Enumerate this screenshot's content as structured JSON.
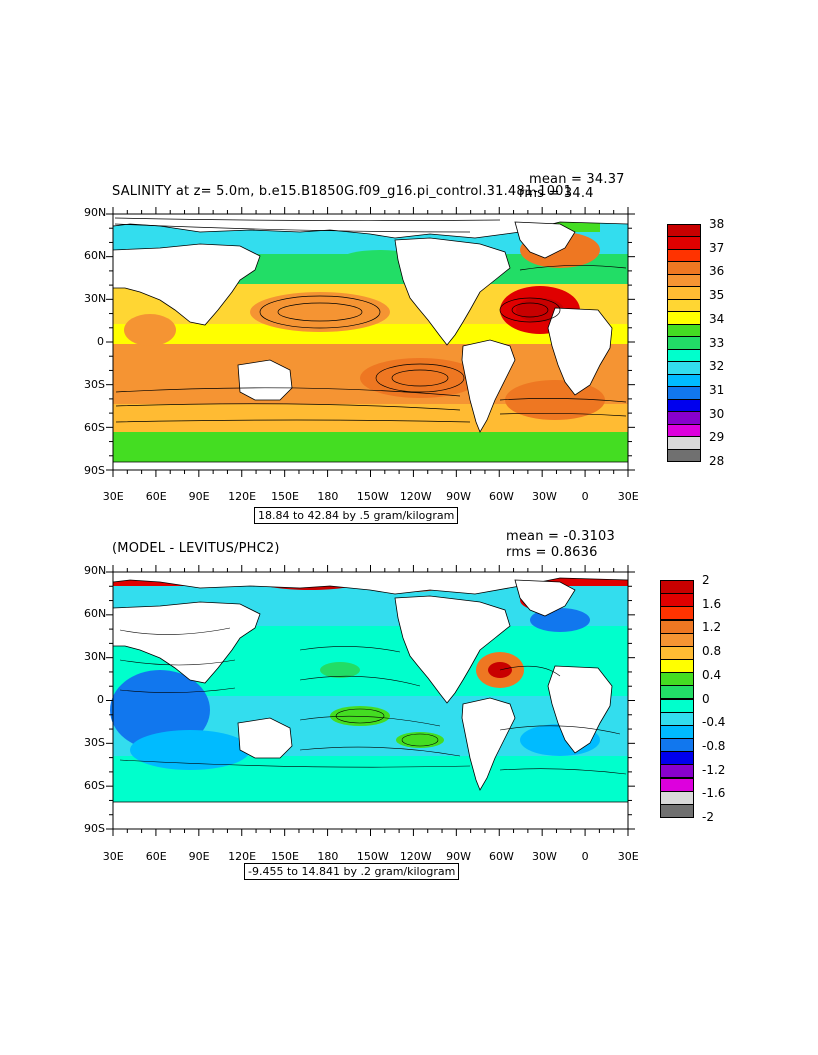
{
  "top": {
    "title": "SALINITY at z=    5.0m, b.e15.B1850G.f09_g16.pi_control.31.481-1001",
    "mean": "mean = 34.37",
    "rms": "rms = 34.4",
    "caption": "18.84 to 42.84 by .5 gram/kilogram",
    "colorbar": {
      "labels": [
        "38",
        "37",
        "36",
        "35",
        "34",
        "33",
        "32",
        "31",
        "30",
        "29",
        "28"
      ],
      "colors": [
        "#c80000",
        "#e00000",
        "#ff3300",
        "#ee7722",
        "#f59433",
        "#ffbb33",
        "#ffd633",
        "#ffff00",
        "#44dd22",
        "#22dd66",
        "#00ffcc",
        "#33ddee",
        "#00bbff",
        "#1177ee",
        "#0000ee",
        "#8800cc",
        "#dd00dd",
        "#d9d9d9",
        "#707070"
      ]
    },
    "lat_labels": [
      "90N",
      "60N",
      "30N",
      "0",
      "30S",
      "60S",
      "90S"
    ],
    "lon_labels": [
      "30E",
      "60E",
      "90E",
      "120E",
      "150E",
      "180",
      "150W",
      "120W",
      "90W",
      "60W",
      "30W",
      "0",
      "30E"
    ]
  },
  "bottom": {
    "title": "(MODEL - LEVITUS/PHC2)",
    "mean": "mean = -0.3103",
    "rms": "rms = 0.8636",
    "caption": "-9.455 to 14.841 by .2 gram/kilogram",
    "colorbar": {
      "labels": [
        "2",
        "1.6",
        "1.2",
        "0.8",
        "0.4",
        "0",
        "-0.4",
        "-0.8",
        "-1.2",
        "-1.6",
        "-2"
      ],
      "colors": [
        "#c80000",
        "#e00000",
        "#ff3300",
        "#ee7722",
        "#f59433",
        "#ffbb33",
        "#ffff00",
        "#44dd22",
        "#22dd66",
        "#00ffcc",
        "#33ddee",
        "#00bbff",
        "#1177ee",
        "#0000ee",
        "#8800cc",
        "#dd00dd",
        "#d9d9d9",
        "#707070"
      ]
    },
    "lat_labels": [
      "90N",
      "60N",
      "30N",
      "0",
      "30S",
      "60S",
      "90S"
    ],
    "lon_labels": [
      "30E",
      "60E",
      "90E",
      "120E",
      "150E",
      "180",
      "150W",
      "120W",
      "90W",
      "60W",
      "30W",
      "0",
      "30E"
    ]
  }
}
